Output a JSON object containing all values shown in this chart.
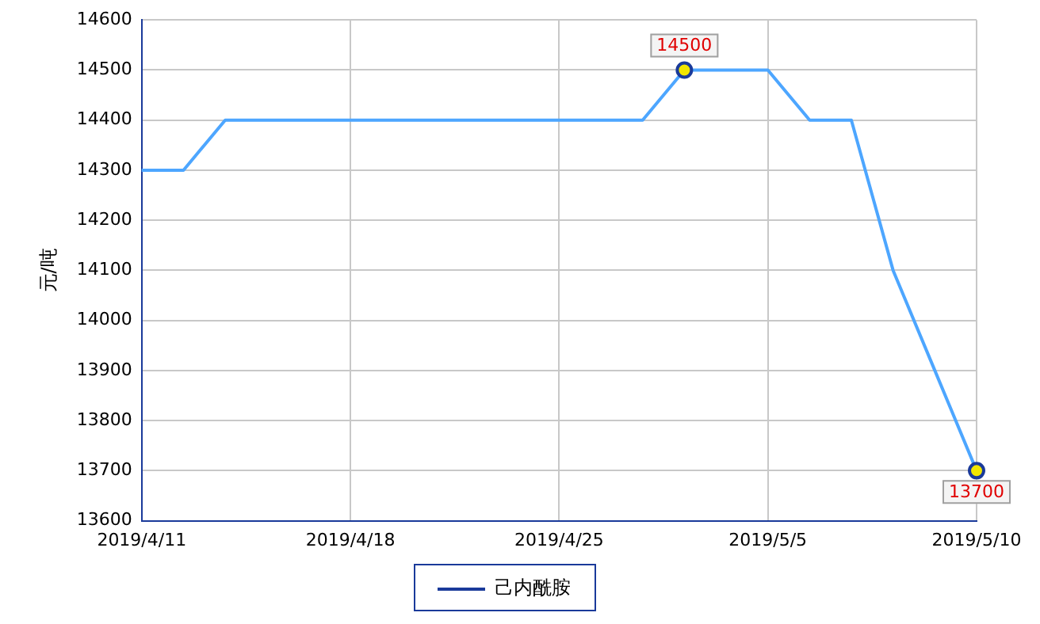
{
  "chart_data": {
    "type": "line",
    "ylabel": "元/吨",
    "categories": [
      "2019/4/11",
      null,
      null,
      null,
      null,
      "2019/4/18",
      null,
      null,
      null,
      null,
      "2019/4/25",
      null,
      null,
      null,
      null,
      "2019/5/5",
      null,
      null,
      null,
      null,
      "2019/5/10"
    ],
    "series": [
      {
        "name": "己内酰胺",
        "color": "#4da6ff",
        "values": [
          14300,
          14300,
          14400,
          14400,
          14400,
          14400,
          14400,
          14400,
          14400,
          14400,
          14400,
          14400,
          14400,
          14500,
          14500,
          14500,
          14400,
          14400,
          14100,
          13900,
          13700
        ],
        "value_labels": [
          null,
          null,
          null,
          null,
          null,
          null,
          null,
          null,
          null,
          null,
          null,
          null,
          null,
          "14500",
          null,
          null,
          null,
          null,
          null,
          null,
          "13700"
        ]
      }
    ],
    "ylim": [
      13600,
      14600
    ],
    "yticks": [
      13600,
      13700,
      13800,
      13900,
      14000,
      14100,
      14200,
      14300,
      14400,
      14500,
      14600
    ],
    "grid": true,
    "legend": "bottom",
    "line_style": "solid"
  }
}
